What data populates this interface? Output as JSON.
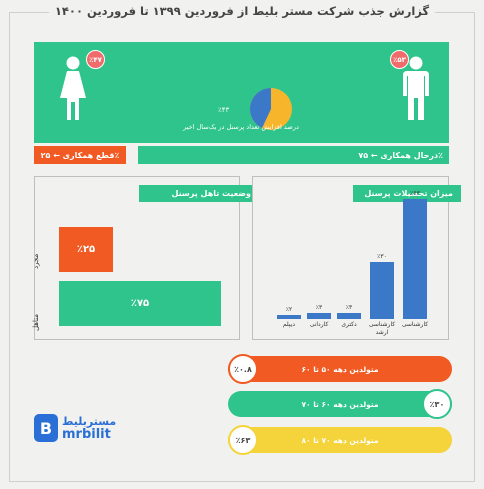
{
  "title": "گزارش جذب شرکت مستر بلیط از فروردین ۱۳۹۹ تا فروردین ۱۴۰۰",
  "gender": {
    "male_pct": "٪۵۳",
    "female_pct": "٪۴۷"
  },
  "growth": {
    "pie_value_label": "٪۴۳",
    "pie_fraction": 0.43,
    "caption": "درصد افزایش تعداد پرسنل در یک‌سال اخیر"
  },
  "cooperation": {
    "ongoing": "درحال همکاری ← ۷۵٪",
    "ended": "قطع همکاری ← ۲۵٪"
  },
  "marital": {
    "title": "وضعیت تاهل پرسنل",
    "bars": [
      {
        "label": "مجرد",
        "value_label": "٪۲۵",
        "value": 25,
        "color": "#f15a22"
      },
      {
        "label": "متاهل",
        "value_label": "٪۷۵",
        "value": 75,
        "color": "#2ec48c"
      }
    ]
  },
  "education": {
    "title": "میزان تحصیلات پرسنل",
    "bars": [
      {
        "category": "کارشناسی",
        "value_label": "٪۶۳",
        "value": 63
      },
      {
        "category": "کارشناسی ارشد",
        "value_label": "٪۳۰",
        "value": 30
      },
      {
        "category": "دکتری",
        "value_label": "٪۳",
        "value": 3
      },
      {
        "category": "کاردانی",
        "value_label": "٪۳",
        "value": 3
      },
      {
        "category": "دیپلم",
        "value_label": "٪۲",
        "value": 2
      }
    ]
  },
  "decades": [
    {
      "label": "متولدین دهه ۵۰ تا ۶۰",
      "value_label": "٪۰.۸",
      "color": "#f15a22"
    },
    {
      "label": "متولدین دهه ۶۰ تا ۷۰",
      "value_label": "٪۳۰",
      "color": "#2ec48c"
    },
    {
      "label": "متولدین دهه ۷۰ تا ۸۰",
      "value_label": "٪۶۳",
      "color": "#f5d33a"
    }
  ],
  "brand": {
    "letter": "B",
    "name_fa": "مستربلیط",
    "name_en": "mrbilit"
  },
  "colors": {
    "green": "#2ec48c",
    "orange": "#f15a22",
    "blue": "#3c78c8",
    "yellow": "#f5d33a",
    "pie_yellow": "#f7b52c"
  }
}
